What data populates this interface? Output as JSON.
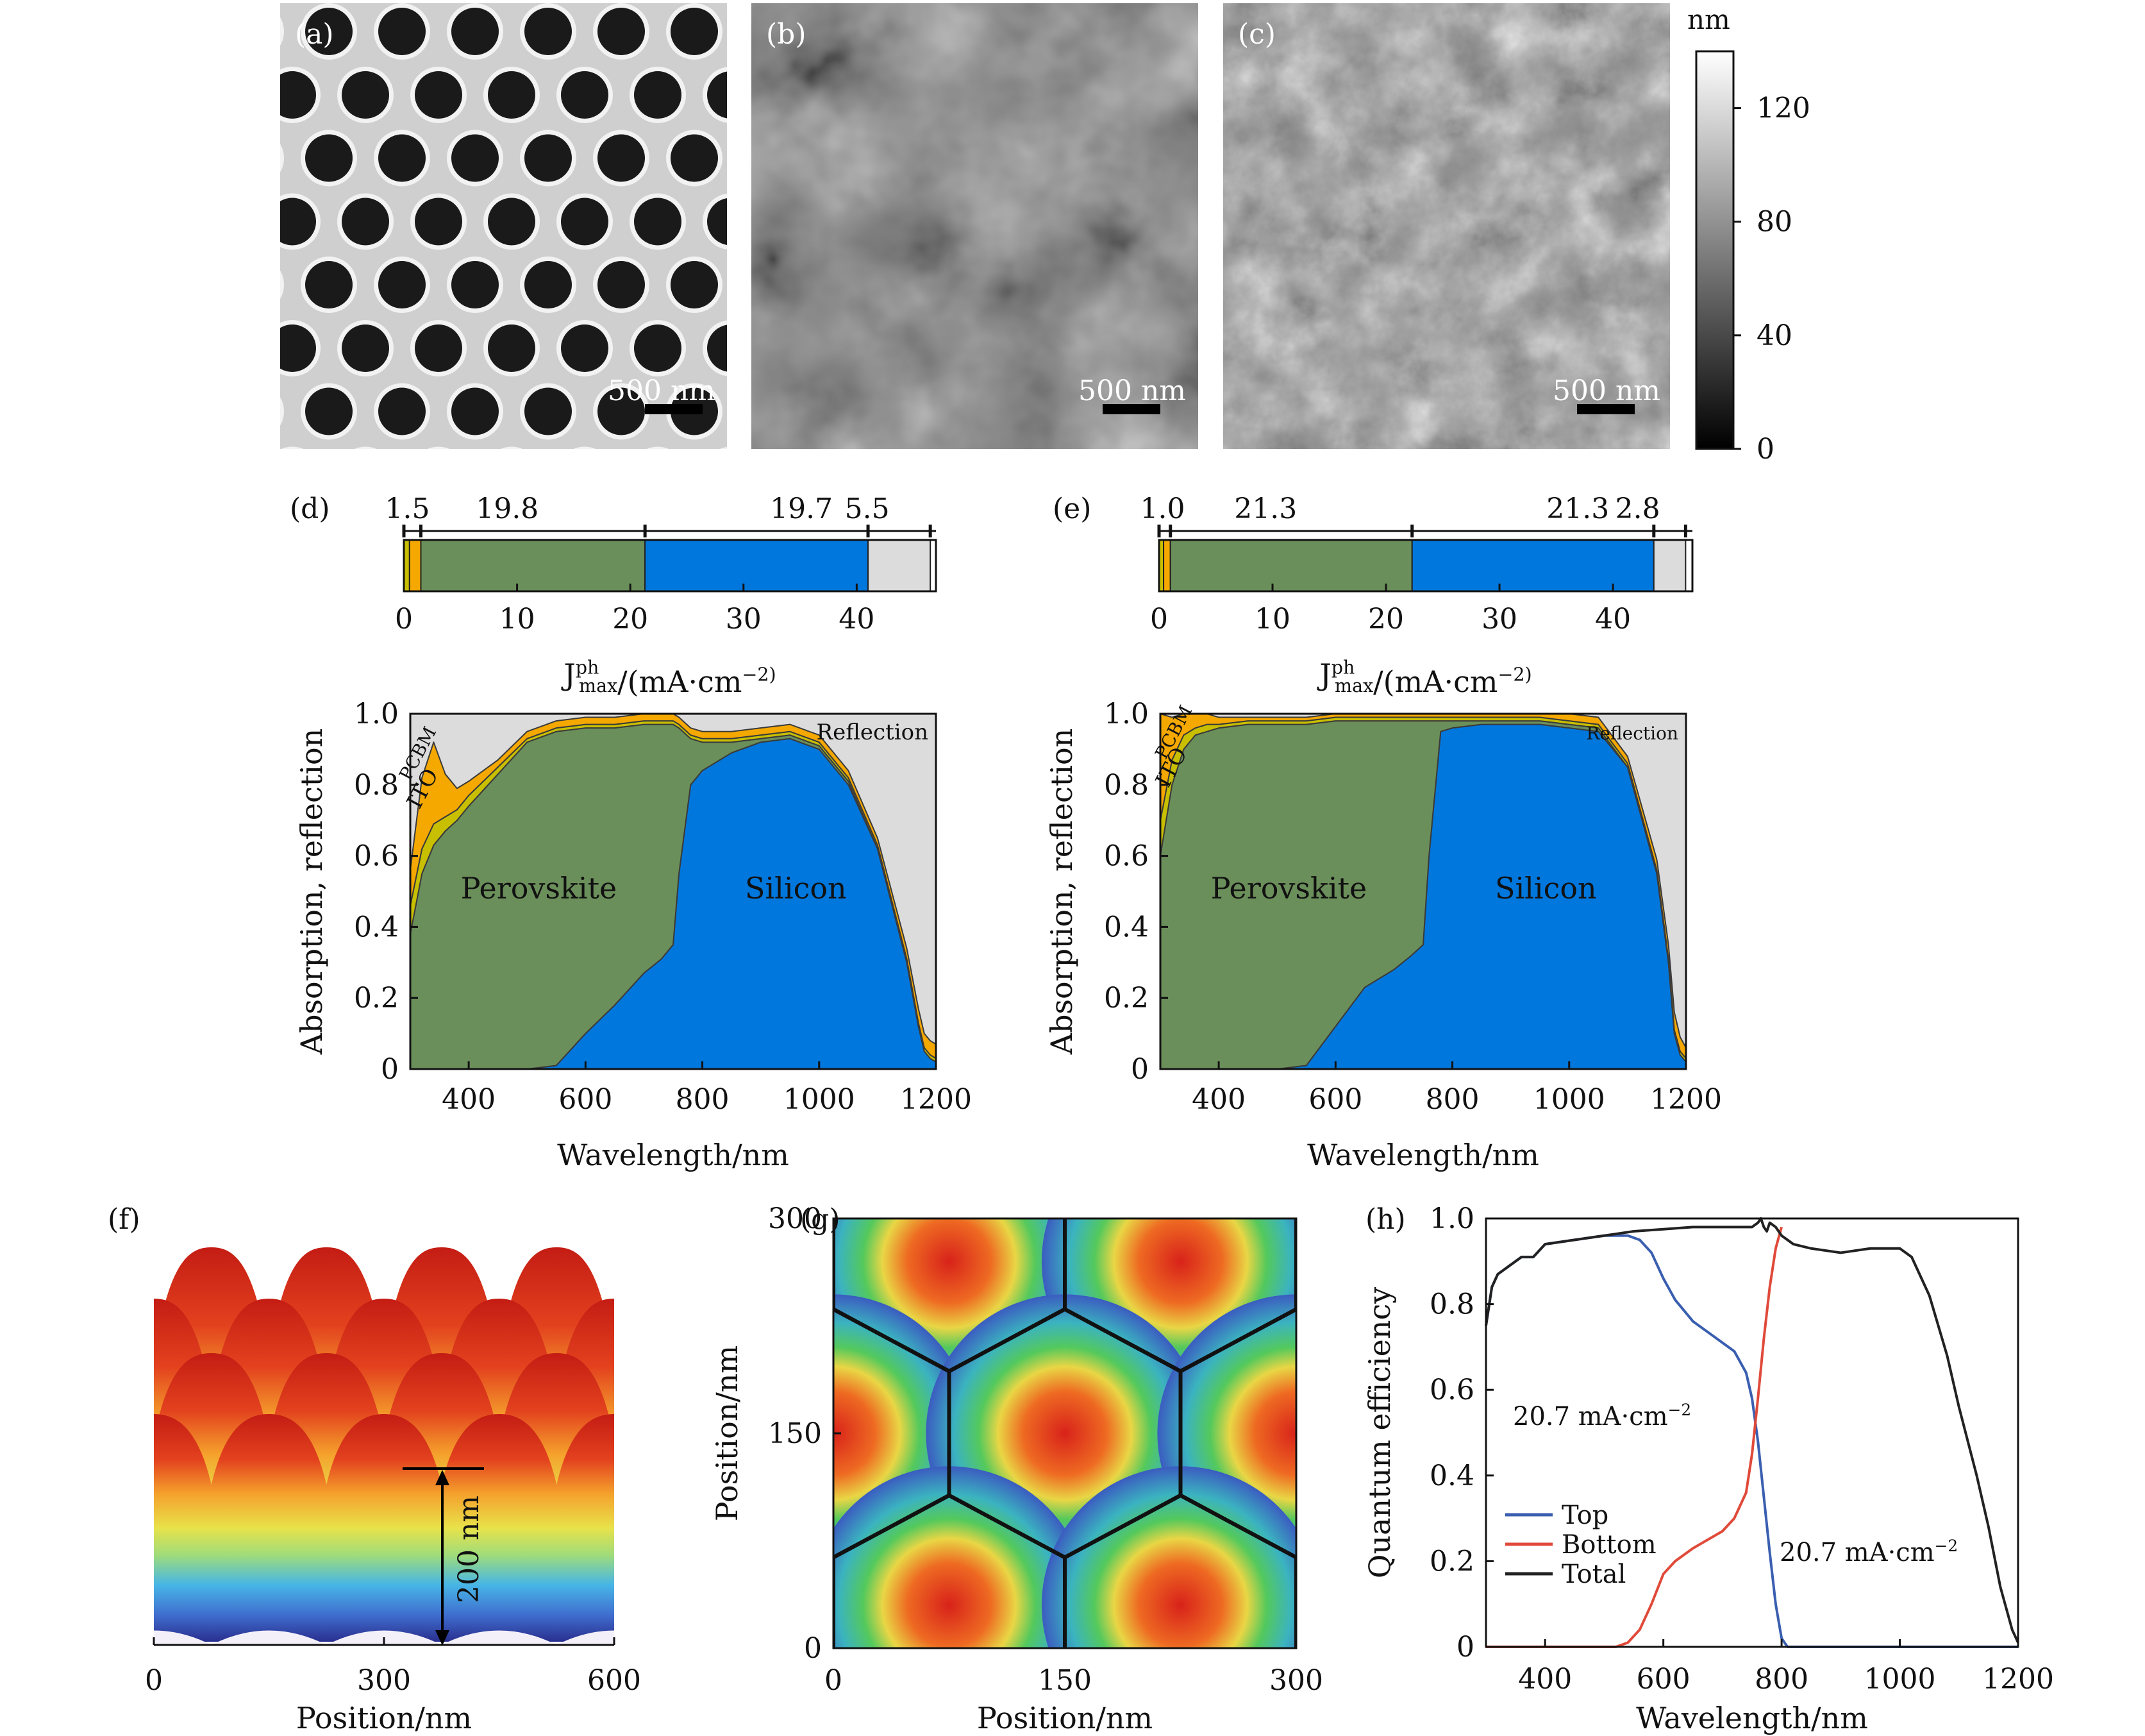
{
  "panels": {
    "a": {
      "label": "(a)",
      "scale_bar": "500 nm"
    },
    "b": {
      "label": "(b)",
      "scale_bar": "500 nm"
    },
    "c": {
      "label": "(c)",
      "scale_bar": "500 nm"
    },
    "colorbar": {
      "unit": "nm",
      "ticks": [
        0,
        40,
        80,
        120
      ],
      "range": [
        0,
        140
      ]
    }
  },
  "chart_data": [
    {
      "id": "d-bar",
      "type": "bar",
      "label": "(d)",
      "xlabel": "J_max^ph/(mA·cm^−2)",
      "xlim": [
        0,
        47
      ],
      "xticks": [
        0,
        10,
        20,
        30,
        40
      ],
      "segments": [
        {
          "name": "ITO",
          "value": 0.5,
          "color": "#c8bf00"
        },
        {
          "name": "PCBM",
          "value": 1.0,
          "color": "#f5a800"
        },
        {
          "name": "Perovskite",
          "value": 19.8,
          "color": "#6b8f5a"
        },
        {
          "name": "Silicon",
          "value": 19.7,
          "color": "#0077dd"
        },
        {
          "name": "Reflection",
          "value": 5.5,
          "color": "#dcdcdc"
        }
      ],
      "value_labels": [
        "1.5",
        "19.8",
        "19.7",
        "5.5"
      ]
    },
    {
      "id": "e-bar",
      "type": "bar",
      "label": "(e)",
      "xlabel": "J_max^ph/(mA·cm^−2)",
      "xlim": [
        0,
        47
      ],
      "xticks": [
        0,
        10,
        20,
        30,
        40
      ],
      "segments": [
        {
          "name": "ITO",
          "value": 0.4,
          "color": "#c8bf00"
        },
        {
          "name": "PCBM",
          "value": 0.6,
          "color": "#f5a800"
        },
        {
          "name": "Perovskite",
          "value": 21.3,
          "color": "#6b8f5a"
        },
        {
          "name": "Silicon",
          "value": 21.3,
          "color": "#0077dd"
        },
        {
          "name": "Reflection",
          "value": 2.8,
          "color": "#dcdcdc"
        }
      ],
      "value_labels": [
        "1.0",
        "21.3",
        "21.3",
        "2.8"
      ]
    },
    {
      "id": "d-area",
      "type": "area",
      "xlabel": "Wavelength/nm",
      "ylabel": "Absorption, reflection",
      "xlim": [
        300,
        1200
      ],
      "ylim": [
        0,
        1.0
      ],
      "xticks": [
        400,
        600,
        800,
        1000,
        1200
      ],
      "yticks": [
        0,
        0.2,
        0.4,
        0.6,
        0.8,
        1.0
      ],
      "x": [
        300,
        320,
        340,
        360,
        380,
        400,
        450,
        500,
        550,
        600,
        650,
        700,
        730,
        750,
        760,
        780,
        800,
        850,
        900,
        950,
        1000,
        1050,
        1100,
        1150,
        1170,
        1180,
        1190,
        1200
      ],
      "series": [
        {
          "name": "Silicon",
          "color": "#0077dd",
          "values": [
            0,
            0,
            0,
            0,
            0,
            0,
            0,
            0,
            0.01,
            0.1,
            0.18,
            0.27,
            0.31,
            0.35,
            0.55,
            0.8,
            0.84,
            0.89,
            0.92,
            0.93,
            0.9,
            0.8,
            0.62,
            0.3,
            0.12,
            0.05,
            0.03,
            0.02
          ]
        },
        {
          "name": "Perovskite",
          "color": "#6b8f5a",
          "values": [
            0.38,
            0.55,
            0.63,
            0.67,
            0.7,
            0.74,
            0.83,
            0.92,
            0.94,
            0.86,
            0.78,
            0.7,
            0.66,
            0.62,
            0.41,
            0.13,
            0.08,
            0.03,
            0.01,
            0.01,
            0.01,
            0.01,
            0,
            0,
            0,
            0,
            0,
            0
          ]
        },
        {
          "name": "ITO",
          "color": "#c8bf00",
          "values": [
            0.08,
            0.07,
            0.06,
            0.04,
            0.03,
            0.03,
            0.02,
            0.01,
            0.01,
            0.01,
            0.01,
            0.01,
            0.01,
            0.01,
            0.01,
            0.01,
            0.01,
            0.01,
            0.01,
            0.01,
            0.01,
            0.01,
            0.01,
            0.01,
            0.01,
            0.01,
            0.01,
            0.01
          ]
        },
        {
          "name": "PCBM",
          "color": "#f5a800",
          "values": [
            0.1,
            0.2,
            0.23,
            0.12,
            0.06,
            0.04,
            0.02,
            0.02,
            0.02,
            0.02,
            0.02,
            0.02,
            0.02,
            0.02,
            0.02,
            0.02,
            0.02,
            0.02,
            0.02,
            0.02,
            0.02,
            0.02,
            0.02,
            0.03,
            0.04,
            0.04,
            0.04,
            0.04
          ]
        }
      ],
      "labels": {
        "silicon": "Silicon",
        "perovskite": "Perovskite",
        "ito": "ITO",
        "pcbm": "PCBM",
        "reflection": "Reflection"
      }
    },
    {
      "id": "e-area",
      "type": "area",
      "xlabel": "Wavelength/nm",
      "ylabel": "Absorption, reflection",
      "xlim": [
        300,
        1200
      ],
      "ylim": [
        0,
        1.0
      ],
      "xticks": [
        400,
        600,
        800,
        1000,
        1200
      ],
      "yticks": [
        0,
        0.2,
        0.4,
        0.6,
        0.8,
        1.0
      ],
      "x": [
        300,
        320,
        340,
        360,
        380,
        400,
        450,
        500,
        550,
        600,
        650,
        700,
        730,
        750,
        760,
        780,
        800,
        850,
        900,
        950,
        1000,
        1050,
        1100,
        1150,
        1170,
        1180,
        1190,
        1200
      ],
      "series": [
        {
          "name": "Silicon",
          "color": "#0077dd",
          "values": [
            0,
            0,
            0,
            0,
            0,
            0,
            0,
            0,
            0.01,
            0.12,
            0.23,
            0.28,
            0.32,
            0.35,
            0.6,
            0.95,
            0.96,
            0.97,
            0.97,
            0.97,
            0.96,
            0.95,
            0.85,
            0.55,
            0.3,
            0.1,
            0.04,
            0.02
          ]
        },
        {
          "name": "Perovskite",
          "color": "#6b8f5a",
          "values": [
            0.6,
            0.8,
            0.9,
            0.94,
            0.95,
            0.96,
            0.97,
            0.97,
            0.96,
            0.86,
            0.75,
            0.7,
            0.66,
            0.63,
            0.38,
            0.03,
            0.02,
            0.01,
            0.01,
            0.01,
            0.01,
            0.01,
            0,
            0,
            0,
            0,
            0,
            0
          ]
        },
        {
          "name": "ITO",
          "color": "#c8bf00",
          "values": [
            0.1,
            0.07,
            0.04,
            0.02,
            0.02,
            0.01,
            0.01,
            0.01,
            0.01,
            0.01,
            0.01,
            0.01,
            0.01,
            0.01,
            0.01,
            0.01,
            0.01,
            0.01,
            0.01,
            0.01,
            0.01,
            0.01,
            0.01,
            0.01,
            0.01,
            0.01,
            0.01,
            0.01
          ]
        },
        {
          "name": "PCBM",
          "color": "#f5a800",
          "values": [
            0.3,
            0.12,
            0.06,
            0.04,
            0.03,
            0.02,
            0.01,
            0.01,
            0.01,
            0.01,
            0.01,
            0.01,
            0.01,
            0.01,
            0.01,
            0.01,
            0.01,
            0.01,
            0.01,
            0.01,
            0.02,
            0.02,
            0.02,
            0.03,
            0.04,
            0.05,
            0.04,
            0.03
          ]
        }
      ],
      "labels": {
        "silicon": "Silicon",
        "perovskite": "Perovskite",
        "ito": "ITO",
        "pcbm": "PCBM",
        "reflection": "Reflection"
      }
    },
    {
      "id": "f",
      "type": "heatmap",
      "label": "(f)",
      "xlabel": "Position/nm",
      "xlim": [
        0,
        600
      ],
      "xticks": [
        0,
        300,
        600
      ],
      "annotation": "200 nm"
    },
    {
      "id": "g",
      "type": "heatmap",
      "label": "(g)",
      "xlabel": "Position/nm",
      "ylabel": "Position/nm",
      "xlim": [
        0,
        300
      ],
      "ylim": [
        0,
        300
      ],
      "xticks": [
        0,
        150,
        300
      ],
      "yticks": [
        0,
        150,
        300
      ]
    },
    {
      "id": "h",
      "type": "line",
      "label": "(h)",
      "xlabel": "Wavelength/nm",
      "ylabel": "Quantum efficiency",
      "xlim": [
        300,
        1200
      ],
      "ylim": [
        0,
        1.0
      ],
      "xticks": [
        400,
        600,
        800,
        1000,
        1200
      ],
      "yticks": [
        0,
        0.2,
        0.4,
        0.6,
        0.8,
        1.0
      ],
      "series": [
        {
          "name": "Top",
          "color": "#3a5fb0",
          "x": [
            300,
            310,
            320,
            340,
            360,
            380,
            400,
            450,
            500,
            520,
            540,
            560,
            580,
            600,
            620,
            650,
            700,
            720,
            740,
            750,
            760,
            770,
            780,
            790,
            800,
            810,
            1200
          ],
          "y": [
            0.75,
            0.84,
            0.87,
            0.89,
            0.91,
            0.91,
            0.94,
            0.95,
            0.96,
            0.96,
            0.96,
            0.95,
            0.92,
            0.86,
            0.81,
            0.76,
            0.71,
            0.69,
            0.64,
            0.58,
            0.48,
            0.35,
            0.22,
            0.1,
            0.02,
            0,
            0
          ]
        },
        {
          "name": "Bottom",
          "color": "#e04a3a",
          "x": [
            300,
            500,
            520,
            540,
            560,
            580,
            600,
            620,
            650,
            700,
            720,
            740,
            750,
            760,
            770,
            780,
            790,
            800
          ],
          "y": [
            0,
            0,
            0,
            0.01,
            0.04,
            0.1,
            0.17,
            0.2,
            0.23,
            0.27,
            0.3,
            0.36,
            0.45,
            0.58,
            0.72,
            0.84,
            0.93,
            0.98
          ]
        },
        {
          "name": "Total",
          "color": "#222222",
          "x": [
            300,
            310,
            320,
            340,
            360,
            380,
            400,
            450,
            500,
            550,
            600,
            650,
            700,
            750,
            760,
            765,
            770,
            775,
            780,
            790,
            800,
            820,
            850,
            900,
            950,
            1000,
            1020,
            1050,
            1080,
            1100,
            1130,
            1150,
            1170,
            1190,
            1200
          ],
          "y": [
            0.75,
            0.84,
            0.87,
            0.89,
            0.91,
            0.91,
            0.94,
            0.95,
            0.96,
            0.97,
            0.975,
            0.98,
            0.98,
            0.98,
            0.99,
            1.0,
            0.98,
            0.97,
            0.99,
            0.98,
            0.96,
            0.94,
            0.93,
            0.92,
            0.93,
            0.93,
            0.91,
            0.82,
            0.68,
            0.56,
            0.4,
            0.28,
            0.14,
            0.04,
            0.01
          ]
        }
      ],
      "annotations": [
        "20.7 mA·cm^−2",
        "20.7 mA·cm^−2"
      ]
    }
  ]
}
